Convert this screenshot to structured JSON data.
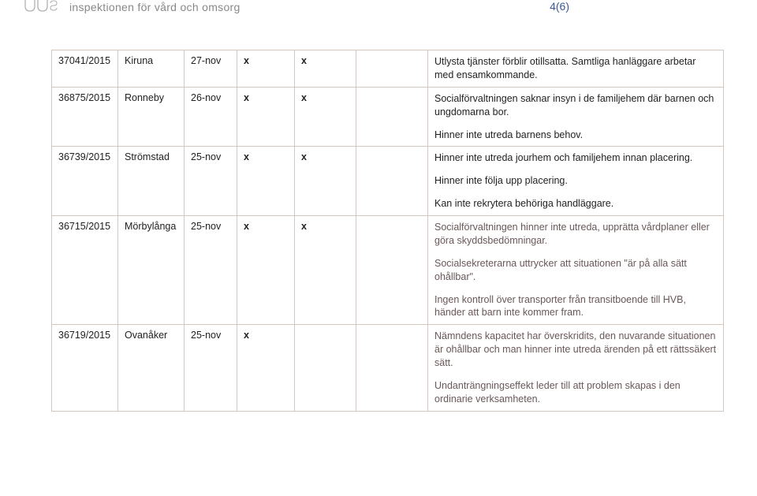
{
  "header": {
    "org_name": "inspektionen för vård och omsorg",
    "page_indicator": "4(6)"
  },
  "rows": [
    {
      "id": "37041/2015",
      "place": "Kiruna",
      "date": "27-nov",
      "x1": "x",
      "x2": "x",
      "x3": "",
      "desc": [
        "Utlysta tjänster förblir otillsatta. Samtliga hanläggare arbetar med ensamkommande."
      ]
    },
    {
      "id": "36875/2015",
      "place": "Ronneby",
      "date": "26-nov",
      "x1": "x",
      "x2": "x",
      "x3": "",
      "desc": [
        "Socialförvaltningen saknar insyn i de familjehem där barnen och ungdomarna bor.",
        "Hinner inte utreda barnens behov."
      ]
    },
    {
      "id": "36739/2015",
      "place": "Strömstad",
      "date": "25-nov",
      "x1": "x",
      "x2": "x",
      "x3": "",
      "desc": [
        "Hinner inte utreda jourhem och familjehem innan placering.",
        "Hinner inte följa upp placering.",
        "Kan inte rekrytera behöriga handläggare."
      ]
    },
    {
      "id": "36715/2015",
      "place": "Mörbylånga",
      "date": "25-nov",
      "x1": "x",
      "x2": "x",
      "x3": "",
      "desc": [
        "Socialförvaltningen hinner inte utreda, upprätta vårdplaner eller göra skyddsbedömningar.",
        "Socialsekreterarna uttrycker att situationen \"är på alla sätt ohållbar\".",
        "Ingen kontroll över transporter från transitboende till HVB, händer att barn inte kommer fram."
      ]
    },
    {
      "id": "36719/2015",
      "place": "Ovanåker",
      "date": "25-nov",
      "x1": "x",
      "x2": "",
      "x3": "",
      "desc": [
        "Nämndens kapacitet har överskridits, den nuvarande situationen är ohållbar och man hinner inte utreda ärenden på ett rättssäkert sätt.",
        "Undanträngningseffekt leder till att problem skapas i den ordinarie verksamheten."
      ]
    }
  ],
  "visual": {
    "page_bg": "#ffffff",
    "border_color": "#d3c7c0",
    "text_color": "#222222",
    "header_blue": "#3b5a93",
    "highlight_text": "#6a5858",
    "font_size_body": 12.5,
    "font_size_header": 14,
    "logo_gray": "#b0b0b0",
    "cell_white": "#ffffff"
  }
}
